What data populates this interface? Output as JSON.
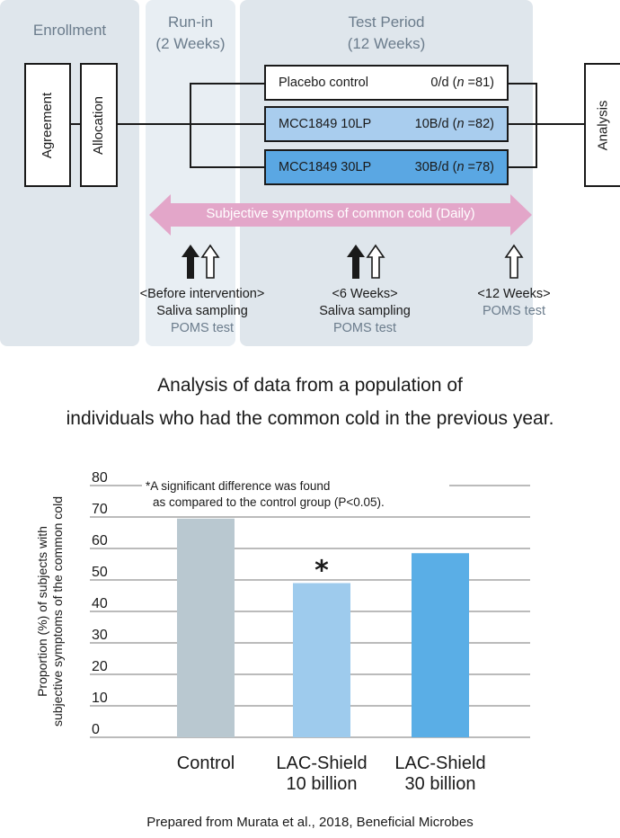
{
  "design": {
    "phases": {
      "enrollment": "Enrollment",
      "runin_line1": "Run-in",
      "runin_line2": "(2 Weeks)",
      "test_line1": "Test Period",
      "test_line2": "(12 Weeks)"
    },
    "agreement": "Agreement",
    "allocation": "Allocation",
    "analysis": "Analysis",
    "arms": [
      {
        "name": "Placebo control",
        "dose": "0/d",
        "n_prefix": "(",
        "n_italic": "n",
        "n_suffix": " =81)",
        "fill": "#ffffff"
      },
      {
        "name": "MCC1849 10LP",
        "dose": "10B/d",
        "n_prefix": "(",
        "n_italic": "n",
        "n_suffix": " =82)",
        "fill": "#a9cdee"
      },
      {
        "name": "MCC1849 30LP",
        "dose": "30B/d",
        "n_prefix": "(",
        "n_italic": "n",
        "n_suffix": " =78)",
        "fill": "#5aa7e3"
      }
    ],
    "symptom_band": "Subjective symptoms of common cold (Daily)",
    "timepoints": [
      {
        "line1": "<Before intervention>",
        "line2": "Saliva sampling",
        "line3": "POMS test"
      },
      {
        "line1": "<6 Weeks>",
        "line2": "Saliva sampling",
        "line3": "POMS test"
      },
      {
        "line1": "<12 Weeks>",
        "line2": "",
        "line3": "POMS test"
      }
    ],
    "colors": {
      "phase_bg": "#dfe6ec",
      "runin_bg": "#e8eef3",
      "band": "#e3a6c9",
      "phase_text": "#6b7c8c"
    }
  },
  "caption": {
    "line1": "Analysis of data from a population of",
    "line2": "individuals who had the common cold in the previous year."
  },
  "chart_data": {
    "type": "bar",
    "categories": [
      "Control",
      "LAC-Shield 10 billion",
      "LAC-Shield 30 billion"
    ],
    "category_lines": [
      [
        "Control"
      ],
      [
        "LAC-Shield",
        "10 billion"
      ],
      [
        "LAC-Shield",
        "30 billion"
      ]
    ],
    "values": [
      69.5,
      49,
      58.5
    ],
    "colors": [
      "#b9c8d0",
      "#9ecbed",
      "#5aaee6"
    ],
    "significant": [
      false,
      true,
      false
    ],
    "significance_marker": "*",
    "ylabel_line1": "Proportion (%) of subjects with",
    "ylabel_line2": "subjective symptoms of the common cold",
    "xlabel": "",
    "ylim": [
      0,
      80
    ],
    "yticks": [
      0,
      10,
      20,
      30,
      40,
      50,
      60,
      70,
      80
    ],
    "grid": true,
    "note_line1": "*A significant difference was found",
    "note_line2": "as compared to the control group (P<0.05)."
  },
  "source": "Prepared from Murata et al., 2018, Beneficial Microbes"
}
